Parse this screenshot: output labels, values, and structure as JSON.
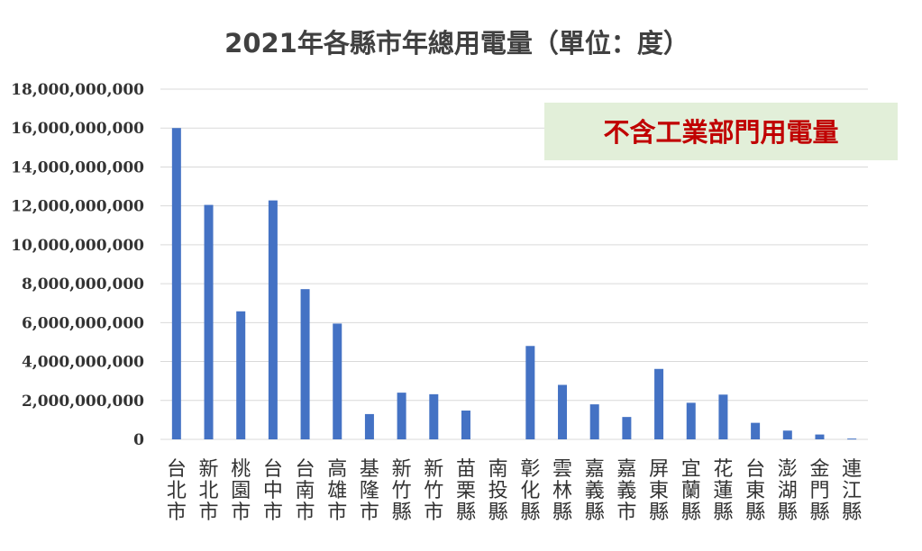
{
  "chart_data": {
    "type": "bar",
    "title": "2021年各縣市年總用電量（單位：度）",
    "annotation": "不含工業部門用電量",
    "categories": [
      "台北市",
      "新北市",
      "桃園市",
      "台中市",
      "台南市",
      "高雄市",
      "基隆市",
      "新竹縣",
      "新竹市",
      "苗栗縣",
      "南投縣",
      "彰化縣",
      "雲林縣",
      "嘉義縣",
      "嘉義市",
      "屏東縣",
      "宜蘭縣",
      "花蓮縣",
      "台東縣",
      "澎湖縣",
      "金門縣",
      "連江縣"
    ],
    "series": [
      {
        "values": [
          16000000000,
          12050000000,
          6580000000,
          12280000000,
          7720000000,
          5950000000,
          1300000000,
          2400000000,
          2320000000,
          1480000000,
          0,
          4800000000,
          2800000000,
          1800000000,
          1150000000,
          3620000000,
          1880000000,
          2300000000,
          850000000,
          450000000,
          250000000,
          40000000
        ]
      }
    ],
    "yticks": [
      "0",
      "2,000,000,000",
      "4,000,000,000",
      "6,000,000,000",
      "8,000,000,000",
      "10,000,000,000",
      "12,000,000,000",
      "14,000,000,000",
      "16,000,000,000",
      "18,000,000,000"
    ],
    "ylim": [
      0,
      18000000000
    ],
    "grid": true,
    "colors": {
      "bar": "#4472C4",
      "grid": "#D9D9D9",
      "annotation_bg": "#E2EFD9",
      "annotation_text": "#C00000"
    }
  }
}
